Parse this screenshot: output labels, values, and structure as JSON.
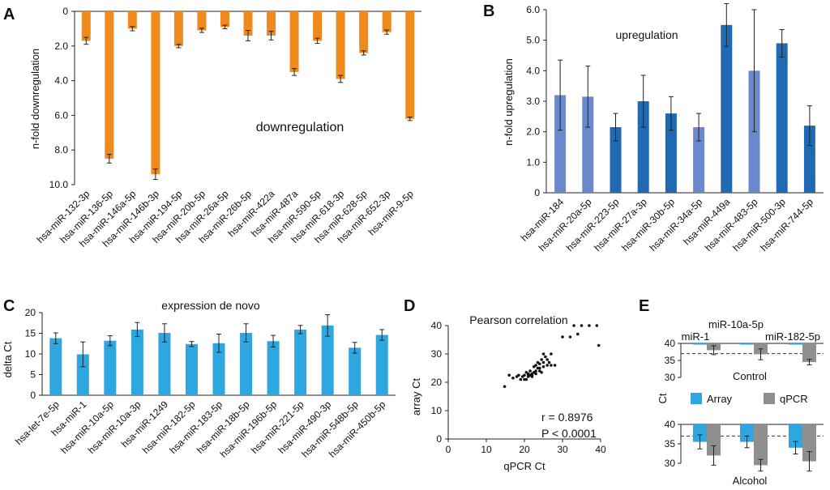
{
  "chart_data": [
    {
      "panel": "A",
      "type": "bar",
      "title": "downregulation",
      "ylabel": "n-fold downregulation",
      "xlabel": "",
      "orientation": "inverted",
      "ylim": [
        0,
        10
      ],
      "yticks": [
        "0",
        "2.0",
        "4.0",
        "6.0",
        "8.0",
        "10.0"
      ],
      "color": "#F08A1C",
      "categories": [
        "hsa-miR-132-3p",
        "hsa-miR-136-5p",
        "hsa-miR-146a-5p",
        "hsa-miR-146b-3p",
        "hsa-miR-194-5p",
        "hsa-miR-20b-5p",
        "hsa-miR-26a-5p",
        "hsa-miR-26b-5p",
        "hsa-miR-422a",
        "hsa-miR-487a",
        "hsa-miR-590-5p",
        "hsa-miR-618-3p",
        "hsa-miR-628-5p",
        "hsa-miR-652-3p",
        "hsa-miR-9-5p"
      ],
      "values": [
        1.7,
        8.5,
        1.0,
        9.4,
        2.0,
        1.1,
        0.9,
        1.4,
        1.4,
        3.5,
        1.7,
        3.9,
        2.4,
        1.2,
        6.2
      ],
      "errors": [
        0.2,
        0.25,
        0.12,
        0.3,
        0.1,
        0.12,
        0.1,
        0.3,
        0.25,
        0.2,
        0.15,
        0.2,
        0.12,
        0.12,
        0.1
      ]
    },
    {
      "panel": "B",
      "type": "bar",
      "title": "upregulation",
      "ylabel": "n-fold upregulation",
      "xlabel": "",
      "ylim": [
        0,
        6
      ],
      "yticks": [
        "0",
        "1.0",
        "2.0",
        "3.0",
        "4.0",
        "5.0",
        "6.0"
      ],
      "color_light": "#6A89CC",
      "color_dark": "#2069B3",
      "categories": [
        "hsa-miR-184",
        "hsa-miR-20a-5p",
        "hsa-miR-223-5p",
        "hsa-miR-27a-3p",
        "hsa-miR-30b-5p",
        "hsa-miR-34a-5p",
        "hsa-miR-449a",
        "hsa-miR-483-5p",
        "hsa-miR-500-3p",
        "hsa-miR-744-5p"
      ],
      "values": [
        3.2,
        3.15,
        2.15,
        3.0,
        2.6,
        2.15,
        5.5,
        4.0,
        4.9,
        2.2
      ],
      "errors": [
        1.15,
        1.0,
        0.45,
        0.85,
        0.55,
        0.45,
        0.7,
        2.0,
        0.45,
        0.65
      ],
      "shade": [
        "light",
        "light",
        "dark",
        "dark",
        "dark",
        "light",
        "dark",
        "light",
        "dark",
        "dark"
      ]
    },
    {
      "panel": "C",
      "type": "bar",
      "title": "expression de novo",
      "ylabel": "delta Ct",
      "xlabel": "",
      "ylim": [
        0,
        20
      ],
      "yticks": [
        "0",
        "5",
        "10",
        "15",
        "20"
      ],
      "color": "#2EA6E0",
      "categories": [
        "hsa-let-7e-5p",
        "hsa-miR-1",
        "hsa-miR-10a-5p",
        "hsa-miR-10a-3p",
        "hsa-miR-1249",
        "hsa-miR-182-5p",
        "hsa-miR-183-5p",
        "hsa-miR-18b-5p",
        "hsa-miR-196b-5p",
        "hsa-miR-221-5p",
        "hsa-miR-490-3p",
        "hsa-miR-548b-5p",
        "hsa-miR-450b-5p"
      ],
      "values": [
        13.8,
        9.9,
        13.2,
        15.9,
        15.1,
        12.4,
        12.6,
        15.1,
        13.1,
        15.9,
        16.9,
        11.5,
        14.6
      ],
      "errors": [
        1.3,
        3.0,
        1.2,
        1.7,
        2.2,
        0.6,
        2.2,
        2.2,
        1.4,
        1.0,
        2.6,
        1.3,
        1.3
      ]
    },
    {
      "panel": "D",
      "type": "scatter",
      "title": "Pearson correlation",
      "xlabel": "qPCR Ct",
      "ylabel": "array Ct",
      "xlim": [
        0,
        40
      ],
      "ylim": [
        0,
        40
      ],
      "xticks": [
        "0",
        "10",
        "20",
        "30",
        "40"
      ],
      "yticks": [
        "0",
        "10",
        "20",
        "30",
        "40"
      ],
      "stat_r": "r = 0.8976",
      "stat_p": "P < 0.0001",
      "x": [
        14.8,
        16,
        17,
        18,
        18.5,
        19,
        19.5,
        20,
        20,
        20.5,
        21,
        21,
        21,
        21.5,
        21.5,
        22,
        22,
        22,
        22.5,
        22.5,
        23,
        23,
        23,
        23.5,
        23.5,
        24,
        24,
        24,
        24.5,
        24.5,
        25,
        25,
        25,
        25.5,
        26,
        26,
        26.5,
        27,
        27,
        28,
        30,
        32,
        33,
        34,
        35,
        37,
        39,
        39.5,
        20.5
      ],
      "y": [
        18.5,
        22.5,
        21.5,
        22,
        22.5,
        21,
        22,
        22.5,
        21,
        23.5,
        22,
        23,
        22.5,
        24,
        22.5,
        22.5,
        23,
        22,
        25.5,
        23.5,
        26,
        24,
        23,
        25,
        27,
        25,
        24,
        26.5,
        23.5,
        28,
        27,
        30,
        25.5,
        29,
        26,
        28,
        27,
        30,
        26,
        26,
        36,
        36,
        40,
        37,
        40,
        40,
        40,
        33,
        21
      ]
    },
    {
      "panel": "E",
      "type": "bar",
      "ylabel": "Ct",
      "series_names": [
        "Array",
        "qPCR"
      ],
      "colors": [
        "#2EA6E0",
        "#8F8F8F"
      ],
      "groups": [
        "miR-1",
        "miR-10a-5p",
        "miR-182-5p"
      ],
      "reference_line": 37,
      "ylim": [
        30,
        40
      ],
      "yticks": [
        "30",
        "35",
        "40"
      ],
      "subplots": [
        {
          "name": "Control",
          "array": [
            40,
            40,
            40
          ],
          "qpcr": [
            38.0,
            36.8,
            34.5
          ],
          "array_err": [
            0,
            0,
            0
          ],
          "qpcr_err": [
            1.3,
            1.6,
            0.8
          ]
        },
        {
          "name": "Alcohol",
          "array": [
            35.5,
            35.5,
            34.0
          ],
          "qpcr": [
            32.0,
            29.5,
            30.5
          ],
          "array_err": [
            1.8,
            1.5,
            1.6
          ],
          "qpcr_err": [
            2.5,
            1.5,
            2.5
          ]
        }
      ]
    }
  ]
}
